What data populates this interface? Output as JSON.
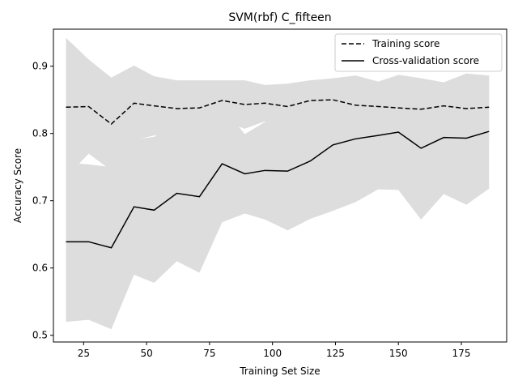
{
  "chart_data": {
    "type": "line",
    "title": "SVM(rbf) C_fifteen",
    "xlabel": "Training Set Size",
    "ylabel": "Accuracy Score",
    "xlim": [
      13,
      193
    ],
    "ylim": [
      0.49,
      0.955
    ],
    "xticks": [
      25,
      50,
      75,
      100,
      125,
      150,
      175
    ],
    "yticks": [
      0.5,
      0.6,
      0.7,
      0.8,
      0.9
    ],
    "ytick_labels": [
      "0.5",
      "0.6",
      "0.7",
      "0.8",
      "0.9"
    ],
    "grid": false,
    "legend_position": "top-right",
    "x": [
      18,
      27,
      36,
      45,
      53,
      62,
      71,
      80,
      89,
      97,
      106,
      115,
      124,
      133,
      142,
      150,
      159,
      168,
      177,
      186
    ],
    "series": [
      {
        "name": "Training score",
        "style": "dashed",
        "color": "#000000",
        "values": [
          0.839,
          0.84,
          0.814,
          0.845,
          0.841,
          0.837,
          0.838,
          0.849,
          0.843,
          0.845,
          0.84,
          0.849,
          0.85,
          0.842,
          0.84,
          0.838,
          0.836,
          0.841,
          0.837,
          0.839
        ],
        "band_lower": [
          0.735,
          0.77,
          0.745,
          0.79,
          0.797,
          0.796,
          0.798,
          0.819,
          0.807,
          0.818,
          0.805,
          0.82,
          0.82,
          0.798,
          0.803,
          0.789,
          0.79,
          0.806,
          0.786,
          0.793
        ],
        "band_upper": [
          0.942,
          0.91,
          0.883,
          0.901,
          0.885,
          0.879,
          0.879,
          0.879,
          0.879,
          0.872,
          0.874,
          0.879,
          0.882,
          0.886,
          0.877,
          0.887,
          0.882,
          0.876,
          0.889,
          0.886
        ]
      },
      {
        "name": "Cross-validation score",
        "style": "solid",
        "color": "#000000",
        "values": [
          0.639,
          0.639,
          0.63,
          0.691,
          0.686,
          0.711,
          0.706,
          0.755,
          0.74,
          0.745,
          0.744,
          0.759,
          0.783,
          0.792,
          0.797,
          0.802,
          0.778,
          0.794,
          0.793,
          0.803
        ],
        "band_lower": [
          0.52,
          0.523,
          0.509,
          0.59,
          0.578,
          0.61,
          0.593,
          0.668,
          0.681,
          0.672,
          0.656,
          0.673,
          0.685,
          0.698,
          0.717,
          0.716,
          0.672,
          0.71,
          0.694,
          0.718
        ],
        "band_upper": [
          0.757,
          0.754,
          0.75,
          0.791,
          0.795,
          0.812,
          0.819,
          0.841,
          0.799,
          0.817,
          0.831,
          0.845,
          0.88,
          0.886,
          0.877,
          0.887,
          0.882,
          0.876,
          0.889,
          0.886
        ]
      }
    ],
    "band_color": "#dddddd"
  }
}
